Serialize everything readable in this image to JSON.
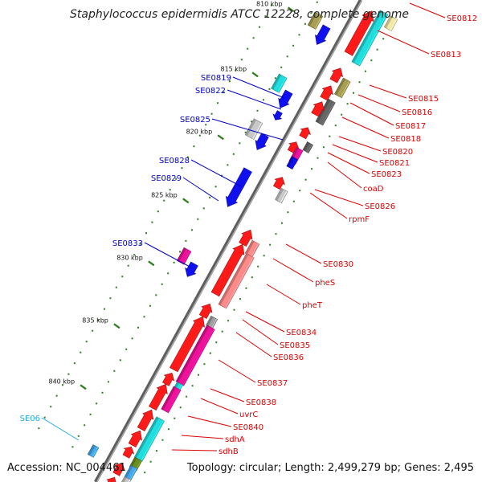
{
  "title": "Staphylococcus epidermidis ATCC 12228, complete genome",
  "footer": {
    "accession": "Accession: NC_004461",
    "summary": "Topology: circular; Length: 2,499,279 bp; Genes: 2,495"
  },
  "colors": {
    "forward_label": "#0000cc",
    "reverse_label": "#dd0000",
    "other_label": "#22aadd",
    "backbone": "#777777",
    "tick": "#2e7d1e"
  },
  "scale_labels": [
    "810 kbp",
    "815 kbp",
    "820 kbp",
    "825 kbp",
    "830 kbp",
    "835 kbp",
    "840 kbp"
  ],
  "forward_labels": [
    "SE0819",
    "SE0822",
    "SE0825",
    "SE0828",
    "SE0829",
    "SE0833"
  ],
  "other_labels": [
    "SE06"
  ],
  "reverse_labels": [
    "SE0812",
    "SE0813",
    "SE0815",
    "SE0816",
    "SE0817",
    "SE0818",
    "SE0820",
    "SE0821",
    "SE0823",
    "coaD",
    "SE0826",
    "rpmF",
    "SE0830",
    "pheS",
    "pheT",
    "SE0834",
    "SE0835",
    "SE0836",
    "SE0837",
    "SE0838",
    "uvrC",
    "SE0840",
    "sdhA",
    "sdhB"
  ]
}
